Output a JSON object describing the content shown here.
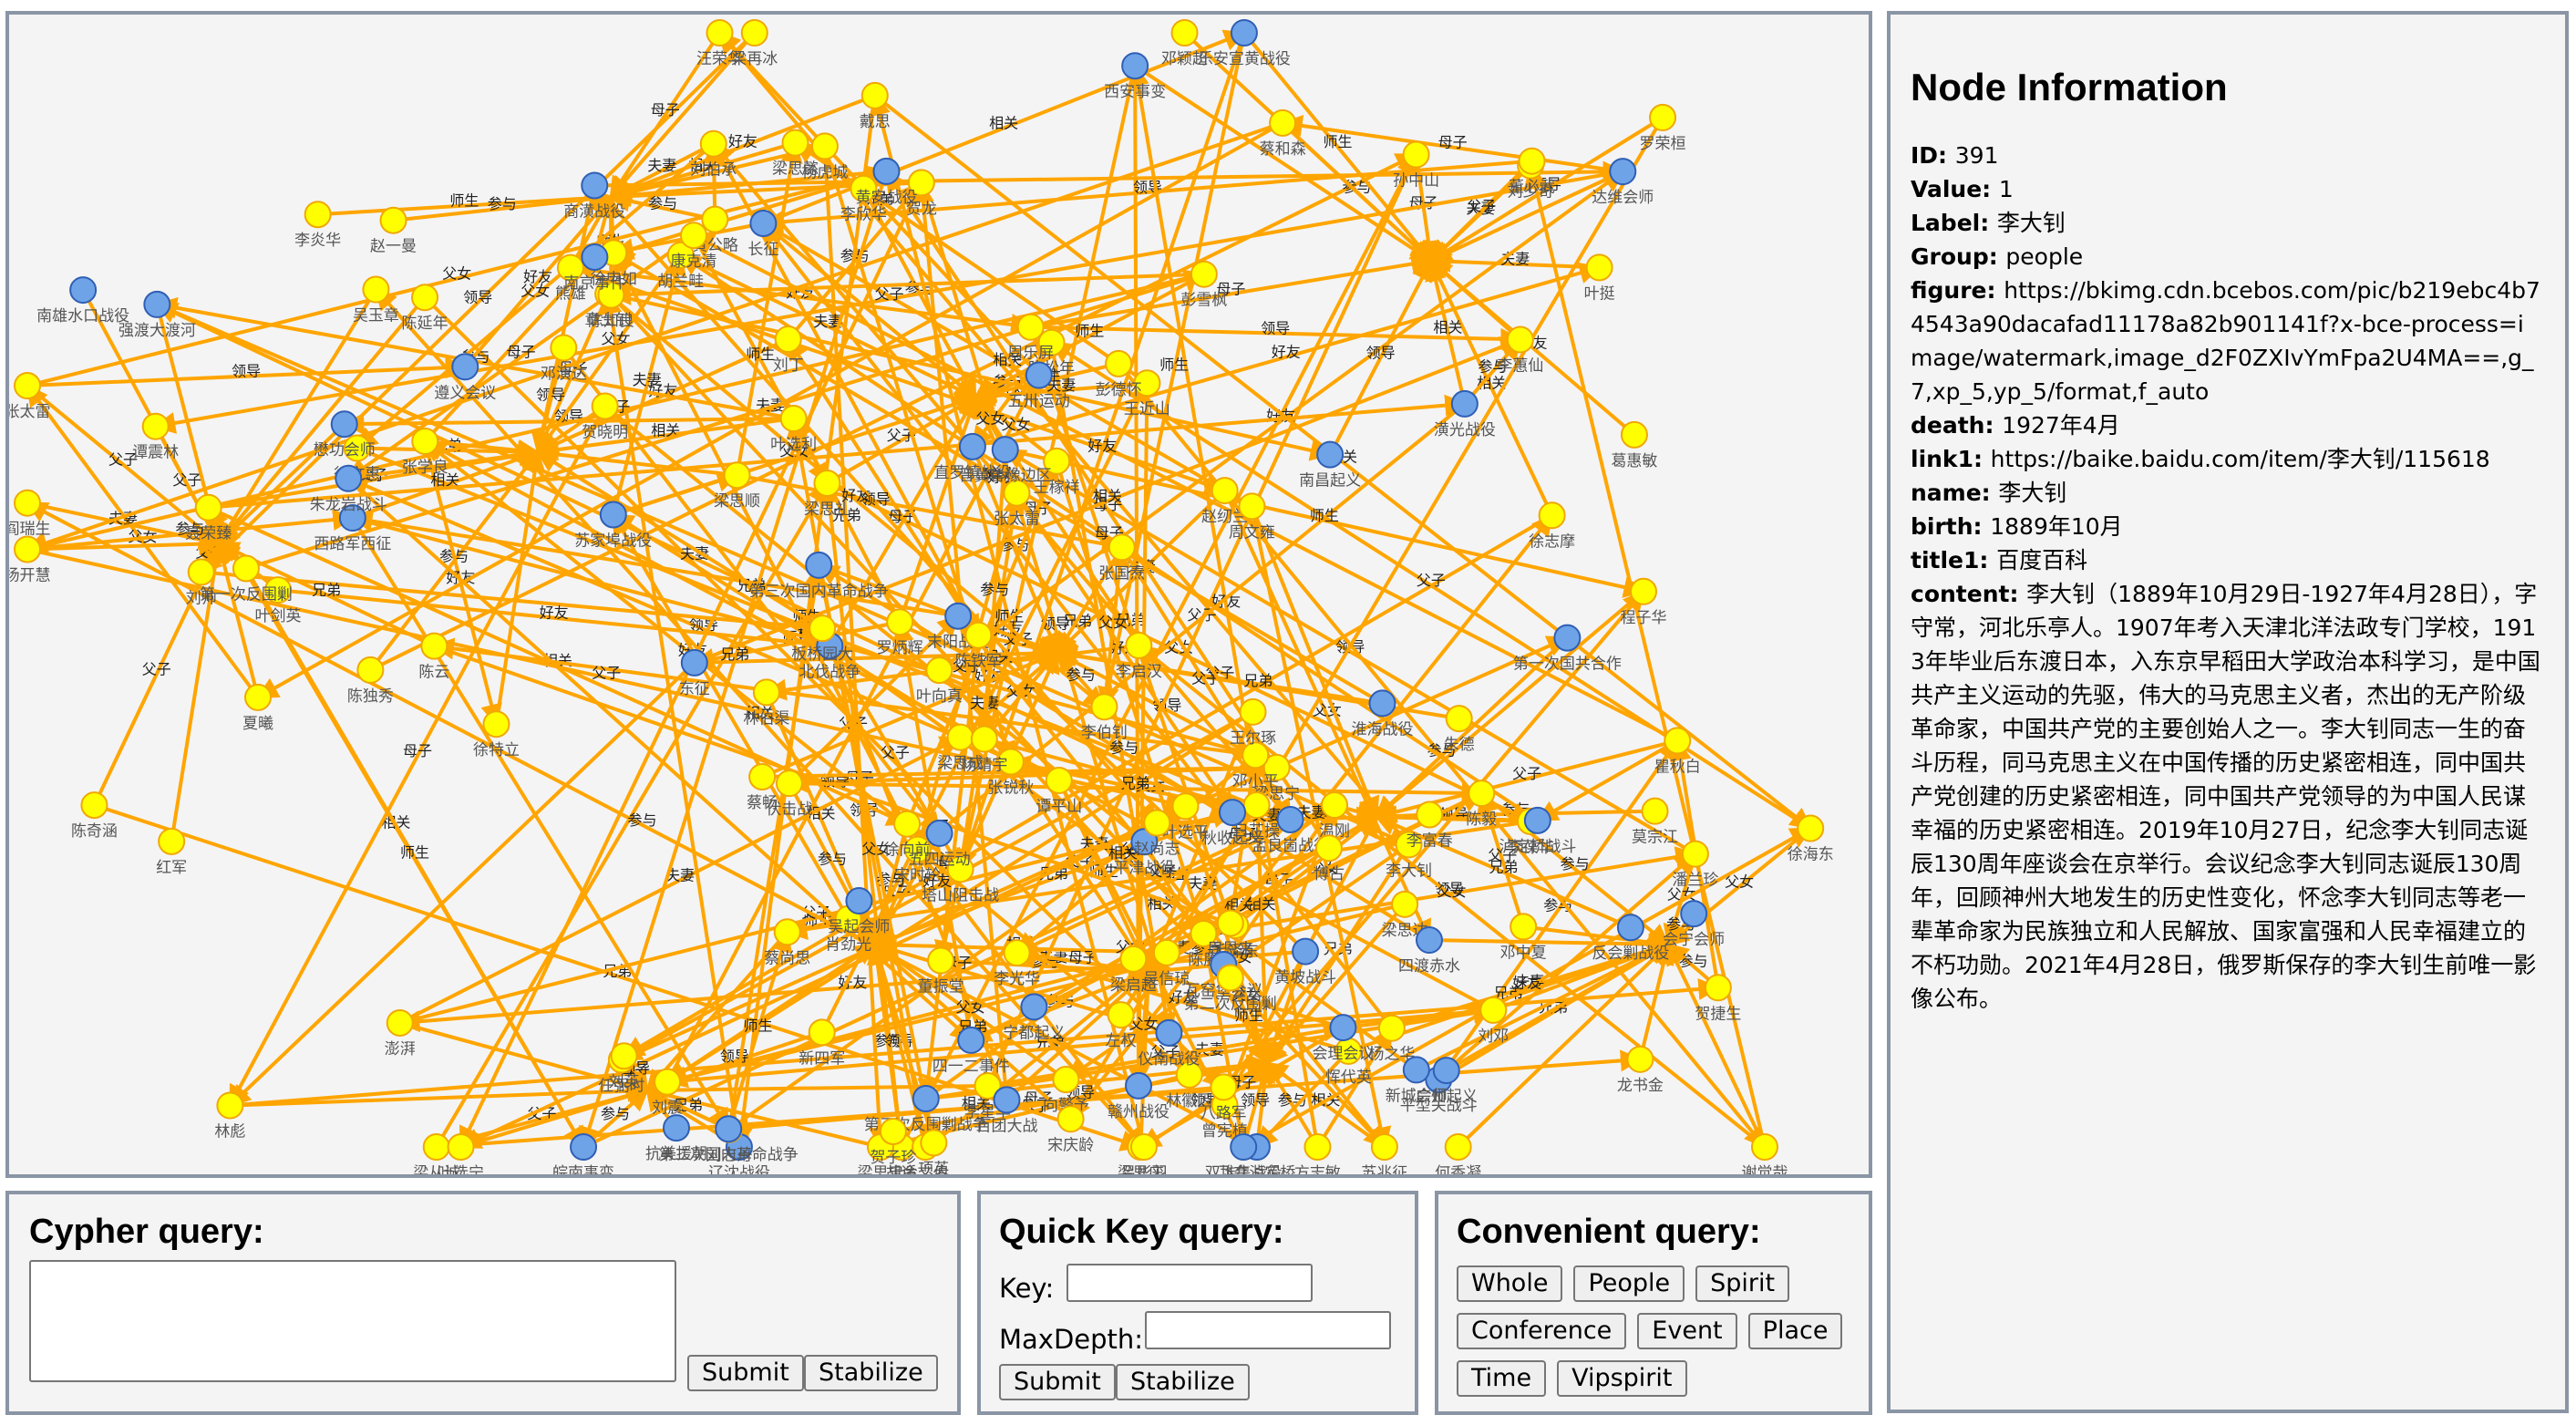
{
  "info": {
    "title": "Node Information",
    "fields": [
      {
        "key": "ID:",
        "value": "391"
      },
      {
        "key": "Value:",
        "value": "1"
      },
      {
        "key": "Label:",
        "value": "李大钊"
      },
      {
        "key": "Group:",
        "value": "people"
      },
      {
        "key": "figure:",
        "value": "https://bkimg.cdn.bcebos.com/pic/b219ebc4b74543a90dacafad11178a82b901141f?x-bce-process=image/watermark,image_d2F0ZXIvYmFpa2U4MA==,g_7,xp_5,yp_5/format,f_auto"
      },
      {
        "key": "death:",
        "value": "1927年4月"
      },
      {
        "key": "link1:",
        "value": "https://baike.baidu.com/item/李大钊/115618"
      },
      {
        "key": "name:",
        "value": "李大钊"
      },
      {
        "key": "birth:",
        "value": "1889年10月"
      },
      {
        "key": "title1:",
        "value": "百度百科"
      },
      {
        "key": "content:",
        "value": "李大钊（1889年10月29日-1927年4月28日），字守常，河北乐亭人。1907年考入天津北洋法政专门学校，1913年毕业后东渡日本，入东京早稻田大学政治本科学习，是中国共产主义运动的先驱，伟大的马克思主义者，杰出的无产阶级革命家，中国共产党的主要创始人之一。李大钊同志一生的奋斗历程，同马克思主义在中国传播的历史紧密相连，同中国共产党创建的历史紧密相连，同中国共产党领导的为中国人民谋幸福的历史紧密相连。2019年10月27日，纪念李大钊同志诞辰130周年座谈会在京举行。会议纪念李大钊同志诞辰130周年，回顾神州大地发生的历史性变化，怀念李大钊同志等老一辈革命家为民族独立和人民解放、国家富强和人民幸福建立的不朽功勋。2021年4月28日，俄罗斯保存的李大钊生前唯一影像公布。"
      }
    ]
  },
  "cypher": {
    "title": "Cypher query:",
    "submit": "Submit",
    "stabilize": "Stabilize"
  },
  "quick": {
    "title": "Quick Key query:",
    "key_label": "Key:",
    "depth_label": "MaxDepth:",
    "submit": "Submit",
    "stabilize": "Stabilize"
  },
  "convenient": {
    "title": "Convenient query:",
    "buttons": [
      "Whole",
      "People",
      "Spirit",
      "Conference",
      "Event",
      "Place",
      "Time",
      "Vipspirit"
    ]
  },
  "graph": {
    "colors": {
      "edge": "#ffa500",
      "person": "#ffff00",
      "person_stroke": "#f0a800",
      "event": "#6fa3e8",
      "event_stroke": "#2f5fb5",
      "label": "#555555",
      "edge_label": "#222222"
    },
    "node_labels": [
      "塔山阻击战",
      "莫宗江",
      "张锐秋",
      "陈松年",
      "梁再冰",
      "陈独秀",
      "徐志摩",
      "胡适",
      "潘兰珍",
      "陈延年",
      "林徽因",
      "梁从诚",
      "梁思成",
      "程子华",
      "四一二事件",
      "李启汉",
      "熊雄",
      "徐文惠",
      "周乐屏",
      "余文伯",
      "徐海东",
      "陈奇涵",
      "梁思达",
      "梁思忠",
      "梁思宁",
      "梁启超",
      "梁思庄",
      "梁思礼",
      "梁思懿",
      "梁思顺",
      "李蕙仙",
      "吴信琼",
      "龙书金",
      "夏曦",
      "第三次反围剿战争",
      "蔡尚思",
      "直罗镇战役",
      "温刚",
      "董振堂",
      "罗炳辉",
      "杨虎城",
      "张学良",
      "西安事变",
      "肖劲光",
      "平型关战斗",
      "南雄水口战役",
      "黄坡战斗",
      "林彪",
      "末阳战役",
      "第一次国共合作",
      "谭平山",
      "五卅运动",
      "徐申如",
      "章士钊",
      "刘少奇",
      "宋时轮",
      "刘邓",
      "刘帅",
      "李大钊",
      "李星华",
      "赵纫兰",
      "李葆华",
      "李光华",
      "李欣华",
      "李炎华",
      "刘丁",
      "葛惠敏",
      "项英",
      "杨之华",
      "谭震林",
      "吕彤羽",
      "皖南事变",
      "陈铁军",
      "周文雍",
      "日芷操",
      "北伐战争",
      "赵一曼",
      "贺晓明",
      "叶挺",
      "刘震",
      "贺捷生",
      "叶剑英",
      "叶选平",
      "叶选宁",
      "叶向真",
      "曾宪植",
      "陈赓",
      "王近山",
      "陈知良",
      "叶选利",
      "孙中山",
      "五四运动",
      "邓中夏",
      "阎瑞生",
      "平津战役",
      "辽沈战役",
      "淮海战役",
      "孟良崮战役",
      "百团大战",
      "长征",
      "遵义会议",
      "西路军西征",
      "南昌起义",
      "秋收起义",
      "广州起义",
      "红军",
      "八路军",
      "新四军",
      "朱德",
      "毛泽东",
      "周恩来",
      "彭德怀",
      "贺龙",
      "聂荣臻",
      "罗荣桓",
      "徐向前",
      "陈毅",
      "陈云",
      "邓小平",
      "任弼时",
      "张国焘",
      "瞿秋白",
      "博古",
      "王稼祥",
      "刘伯承",
      "徐特立",
      "董必武",
      "林伯渠",
      "谢觉哉",
      "吴玉章",
      "方志敏",
      "刘志丹",
      "杨靖宇",
      "赵尚志",
      "左权",
      "彭雪枫",
      "黄公略",
      "邓演达",
      "蔡和森",
      "向警予",
      "恽代英",
      "张太雷",
      "苏兆征",
      "澎湃",
      "蔡畅",
      "李富春",
      "王尔琢",
      "张太雷",
      "戴思",
      "朱龙岩战斗",
      "乐安宣黄战役",
      "伏击战",
      "四渡赤水",
      "强渡大渡河",
      "飞夺泸定桥",
      "抗美援朝",
      "东征",
      "泸定桥战斗",
      "瓦窑堡会议",
      "胡兰畦",
      "汪荣华",
      "康克清",
      "邓颖超",
      "宋庆龄",
      "何香凝",
      "杨开慧",
      "贺子珍",
      "刘英",
      "李伯钊",
      "宁都起义",
      "会理会议",
      "苏家埠战役",
      "黄安战役",
      "商潢战役",
      "潢光战役",
      "仪南战役",
      "会宁会师",
      "懋功会师",
      "双堆集战役",
      "第二次国内革命战争",
      "第三次国内革命战争",
      "反会剿战役",
      "赣州战役",
      "晋冀鲁豫边区",
      "南京事件",
      "板桥园大",
      "达维会师",
      "吴起会师",
      "新城会师",
      "第一次反围剿",
      "第二次反围剿"
    ]
  }
}
